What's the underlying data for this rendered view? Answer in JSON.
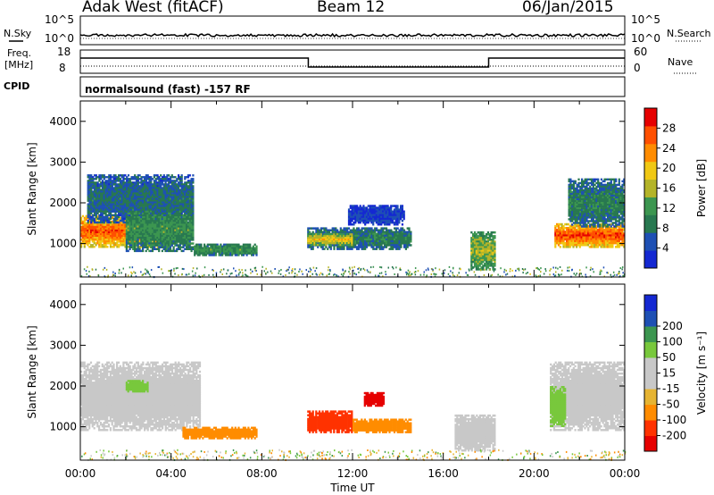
{
  "header": {
    "title": "Adak West (fitACF)",
    "beam": "Beam 12",
    "date": "06/Jan/2015"
  },
  "panel_labels": {
    "nsky": "N.Sky",
    "nsearch": "N.Search",
    "freq": "Freq.",
    "freq_unit": "[MHz]",
    "nave": "Nave",
    "cpid": "CPID",
    "cpid_text": "normalsound (fast) -157 RF"
  },
  "noise_axis": {
    "left_ticks": [
      "10^5",
      "10^0"
    ],
    "right_ticks": [
      "10^5",
      "10^0"
    ]
  },
  "freq_axis": {
    "left_ticks": [
      "18",
      "8"
    ],
    "right_ticks": [
      "60",
      "0"
    ]
  },
  "colors": {
    "power": [
      "#1428d2",
      "#1e50b4",
      "#287850",
      "#3c9650",
      "#b4b428",
      "#f0c814",
      "#ff8c00",
      "#ff5000",
      "#e60000"
    ],
    "velocity": [
      "#e60000",
      "#ff3200",
      "#ff8c00",
      "#e6b432",
      "#c8c8c8",
      "#c8c8c8",
      "#78c83c",
      "#3c9650",
      "#1e50b4",
      "#1428d2"
    ]
  },
  "chart_data": [
    {
      "type": "heatmap",
      "panel": "power",
      "ylabel": "Slant Range [km]",
      "xlabel": "",
      "ylim": [
        180,
        4500
      ],
      "y_ticks": [
        "1000",
        "2000",
        "3000",
        "4000"
      ],
      "colorbar_label": "Power [dB]",
      "colorbar_ticks": [
        "4",
        "8",
        "12",
        "16",
        "20",
        "24",
        "28"
      ],
      "colorbar_range": [
        0,
        32
      ],
      "echo_regions": [
        {
          "t0": 0.0,
          "t1": 3.6,
          "r0": 900,
          "r1": 1700,
          "level": 27
        },
        {
          "t0": 0.3,
          "t1": 5.0,
          "r0": 1500,
          "r1": 2700,
          "level": 8
        },
        {
          "t0": 2.0,
          "t1": 5.0,
          "r0": 800,
          "r1": 1900,
          "level": 12
        },
        {
          "t0": 5.0,
          "t1": 7.8,
          "r0": 700,
          "r1": 1000,
          "level": 12
        },
        {
          "t0": 10.0,
          "t1": 14.6,
          "r0": 850,
          "r1": 1400,
          "level": 10
        },
        {
          "t0": 10.0,
          "t1": 12.0,
          "r0": 950,
          "r1": 1250,
          "level": 20
        },
        {
          "t0": 11.8,
          "t1": 14.3,
          "r0": 1450,
          "r1": 1950,
          "level": 4
        },
        {
          "t0": 17.2,
          "t1": 18.3,
          "r0": 350,
          "r1": 1300,
          "level": 16
        },
        {
          "t0": 20.9,
          "t1": 24.0,
          "r0": 900,
          "r1": 1500,
          "level": 28
        },
        {
          "t0": 21.5,
          "t1": 24.0,
          "r0": 1400,
          "r1": 2600,
          "level": 10
        }
      ]
    },
    {
      "type": "heatmap",
      "panel": "velocity",
      "ylabel": "Slant Range [km]",
      "xlabel": "Time UT",
      "ylim": [
        180,
        4500
      ],
      "y_ticks": [
        "1000",
        "2000",
        "3000",
        "4000"
      ],
      "x_ticks": [
        "00:00",
        "04:00",
        "08:00",
        "12:00",
        "16:00",
        "20:00",
        "00:00"
      ],
      "colorbar_label": "Velocity [m s⁻¹]",
      "colorbar_ticks": [
        "-200",
        "-100",
        "-50",
        "-15",
        "15",
        "50",
        "100",
        "200"
      ],
      "echo_regions": [
        {
          "t0": 0.0,
          "t1": 5.3,
          "r0": 900,
          "r1": 2600,
          "velocity": 0
        },
        {
          "t0": 2.0,
          "t1": 3.0,
          "r0": 1850,
          "r1": 2150,
          "velocity": 30
        },
        {
          "t0": 4.5,
          "t1": 7.8,
          "r0": 700,
          "r1": 1000,
          "velocity": -60
        },
        {
          "t0": 10.0,
          "t1": 12.0,
          "r0": 850,
          "r1": 1400,
          "velocity": -180
        },
        {
          "t0": 12.0,
          "t1": 14.6,
          "r0": 850,
          "r1": 1200,
          "velocity": -80
        },
        {
          "t0": 12.5,
          "t1": 13.4,
          "r0": 1500,
          "r1": 1850,
          "velocity": -220
        },
        {
          "t0": 16.5,
          "t1": 18.3,
          "r0": 400,
          "r1": 1300,
          "velocity": 0
        },
        {
          "t0": 20.7,
          "t1": 24.0,
          "r0": 900,
          "r1": 2600,
          "velocity": 0
        },
        {
          "t0": 20.7,
          "t1": 21.4,
          "r0": 1000,
          "r1": 2000,
          "velocity": 40
        }
      ]
    }
  ]
}
